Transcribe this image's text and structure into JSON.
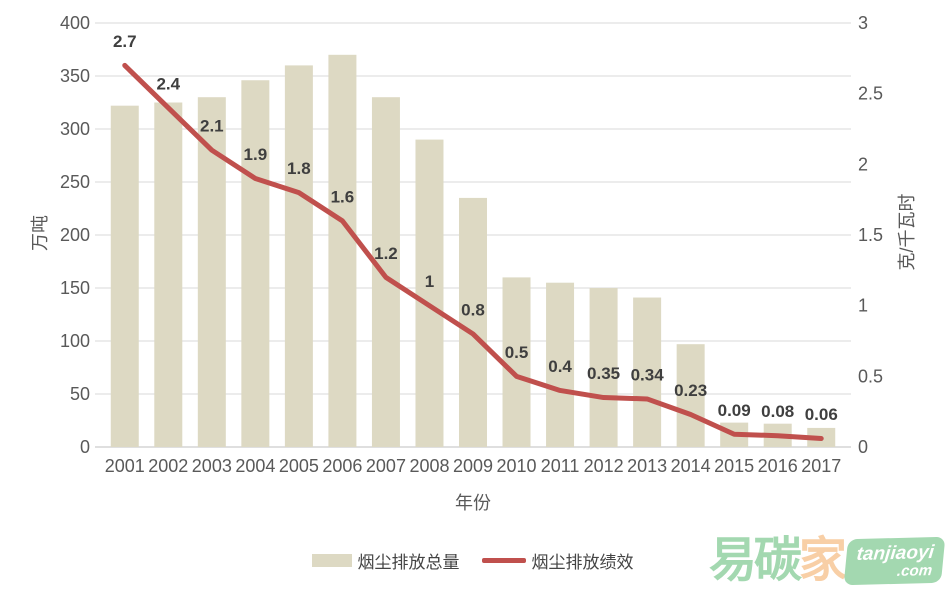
{
  "chart_data": {
    "type": "combo-bar-line",
    "title": "",
    "categories": [
      "2001",
      "2002",
      "2003",
      "2004",
      "2005",
      "2006",
      "2007",
      "2008",
      "2009",
      "2010",
      "2011",
      "2012",
      "2013",
      "2014",
      "2015",
      "2016",
      "2017"
    ],
    "x_axis": {
      "title": "年份"
    },
    "left_axis": {
      "title": "万吨",
      "min": 0,
      "max": 400,
      "step": 50,
      "tick_labels": [
        "400",
        "350",
        "300",
        "250",
        "200",
        "150",
        "100",
        "50",
        "0"
      ]
    },
    "right_axis": {
      "title": "克/千瓦时",
      "min": 0,
      "max": 3,
      "step": 0.5,
      "tick_labels": [
        "3",
        "2.5",
        "2",
        "1.5",
        "1",
        "0.5",
        "0"
      ]
    },
    "series": [
      {
        "name": "烟尘排放总量",
        "type": "bar",
        "axis": "left",
        "color": "#DDD9C3",
        "values": [
          322,
          325,
          330,
          346,
          360,
          370,
          330,
          290,
          235,
          160,
          155,
          150,
          141,
          97,
          23,
          22,
          18
        ]
      },
      {
        "name": "烟尘排放绩效",
        "type": "line",
        "axis": "right",
        "color": "#C0504D",
        "values": [
          2.7,
          2.4,
          2.1,
          1.9,
          1.8,
          1.6,
          1.2,
          1.0,
          0.8,
          0.5,
          0.4,
          0.35,
          0.34,
          0.23,
          0.09,
          0.08,
          0.06
        ],
        "point_labels": [
          "2.7",
          "2.4",
          "2.1",
          "1.9",
          "1.8",
          "1.6",
          "1.2",
          "1",
          "0.8",
          "0.5",
          "0.4",
          "0.35",
          "0.34",
          "0.23",
          "0.09",
          "0.08",
          "0.06"
        ]
      }
    ],
    "legend": {
      "position": "bottom-center",
      "entries": [
        {
          "label": "烟尘排放总量",
          "swatch": "bar"
        },
        {
          "label": "烟尘排放绩效",
          "swatch": "line"
        }
      ]
    },
    "grid": "horizontal",
    "colors": {
      "gridline": "#D9D9D9",
      "axis_line": "#BFBFBF",
      "tick_text": "#595959",
      "data_label": "#3F3F3F"
    }
  },
  "watermark": {
    "cn_green": "易碳",
    "cn_peach": "家",
    "badge_line1": "tanjiaoyi",
    "badge_line2": ".com",
    "green": "#A3D8B0",
    "peach": "#F8CFA6"
  }
}
